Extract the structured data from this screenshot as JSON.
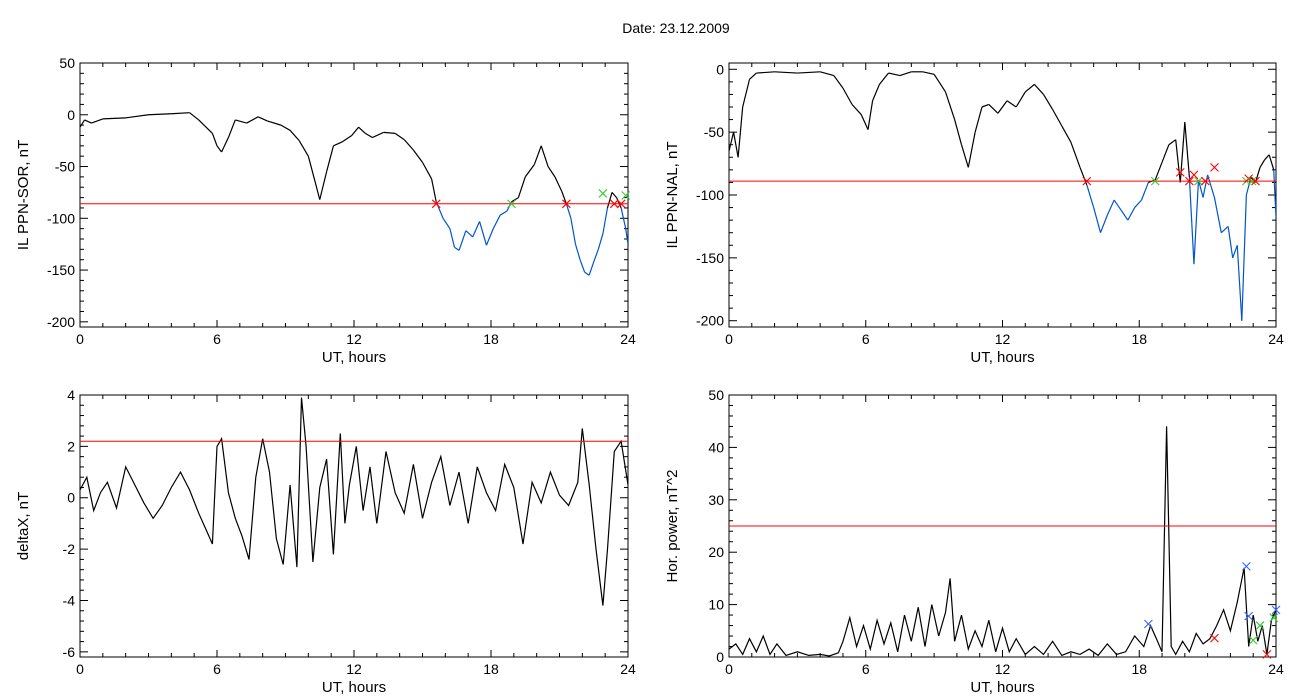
{
  "figure": {
    "title": "Date:  23.12.2009"
  },
  "colors": {
    "data_line": "#000000",
    "below_threshold": "#0055cc",
    "threshold": "#ff0000",
    "marker_red": "#ff0000",
    "marker_green": "#33cc33",
    "marker_blue": "#3366ff"
  },
  "chart_data": [
    {
      "type": "line",
      "xlabel": "UT, hours",
      "ylabel": "IL PPN-SOR, nT",
      "xlim": [
        0,
        24
      ],
      "ylim": [
        -205,
        50
      ],
      "xticks": [
        0,
        6,
        12,
        18,
        24
      ],
      "yticks": [
        50,
        0,
        -50,
        -100,
        -150,
        -200
      ],
      "threshold": -86,
      "color_below_threshold": true,
      "x": [
        0,
        0.2,
        0.5,
        1,
        2,
        3,
        4,
        4.8,
        5.2,
        5.8,
        6.0,
        6.2,
        6.5,
        6.8,
        7.3,
        7.8,
        8.2,
        8.8,
        9.2,
        9.6,
        10.0,
        10.3,
        10.5,
        10.8,
        11.1,
        11.5,
        11.9,
        12.2,
        12.5,
        12.8,
        13.3,
        13.8,
        14.2,
        14.6,
        15.0,
        15.4,
        15.6,
        15.9,
        16.2,
        16.4,
        16.6,
        16.9,
        17.2,
        17.5,
        17.8,
        18.1,
        18.4,
        18.7,
        18.9,
        19.2,
        19.5,
        19.9,
        20.2,
        20.5,
        20.8,
        21.1,
        21.3,
        21.5,
        21.7,
        21.9,
        22.1,
        22.3,
        22.5,
        22.7,
        22.9,
        23.1,
        23.3,
        23.5,
        23.7,
        23.9,
        24.0
      ],
      "y": [
        -12,
        -5,
        -8,
        -4,
        -3,
        0,
        1,
        2,
        -5,
        -18,
        -30,
        -36,
        -22,
        -5,
        -8,
        -2,
        -6,
        -10,
        -15,
        -25,
        -40,
        -65,
        -82,
        -55,
        -30,
        -26,
        -20,
        -12,
        -18,
        -22,
        -17,
        -18,
        -24,
        -34,
        -46,
        -62,
        -84,
        -100,
        -110,
        -128,
        -131,
        -112,
        -118,
        -103,
        -126,
        -110,
        -97,
        -93,
        -84,
        -80,
        -60,
        -48,
        -30,
        -50,
        -60,
        -74,
        -86,
        -100,
        -125,
        -140,
        -152,
        -155,
        -142,
        -130,
        -115,
        -90,
        -75,
        -80,
        -90,
        -110,
        -125
      ],
      "markers": [
        {
          "x": 15.6,
          "y": -86,
          "color": "red"
        },
        {
          "x": 18.9,
          "y": -86,
          "color": "green"
        },
        {
          "x": 21.3,
          "y": -86,
          "color": "red"
        },
        {
          "x": 22.9,
          "y": -76,
          "color": "green"
        },
        {
          "x": 23.4,
          "y": -86,
          "color": "red"
        },
        {
          "x": 23.7,
          "y": -86,
          "color": "red"
        },
        {
          "x": 23.9,
          "y": -78,
          "color": "green"
        }
      ]
    },
    {
      "type": "line",
      "xlabel": "UT, hours",
      "ylabel": "IL PPN-NAL, nT",
      "xlim": [
        0,
        24
      ],
      "ylim": [
        -205,
        5
      ],
      "xticks": [
        0,
        6,
        12,
        18,
        24
      ],
      "yticks": [
        0,
        -50,
        -100,
        -150,
        -200
      ],
      "threshold": -89,
      "color_below_threshold": true,
      "x": [
        0,
        0.2,
        0.4,
        0.6,
        0.9,
        1.2,
        2,
        3,
        4,
        4.6,
        5.0,
        5.4,
        5.8,
        6.1,
        6.3,
        6.6,
        7,
        7.5,
        8,
        8.5,
        9,
        9.5,
        9.9,
        10.2,
        10.5,
        10.8,
        11.1,
        11.4,
        11.8,
        12.2,
        12.6,
        13,
        13.4,
        13.8,
        14.2,
        14.6,
        15,
        15.4,
        15.7,
        16.0,
        16.3,
        16.6,
        16.9,
        17.2,
        17.5,
        17.8,
        18.1,
        18.4,
        18.7,
        19.0,
        19.3,
        19.6,
        19.8,
        20.0,
        20.2,
        20.4,
        20.6,
        20.8,
        21.0,
        21.3,
        21.6,
        21.9,
        22.1,
        22.3,
        22.5,
        22.7,
        22.9,
        23.1,
        23.3,
        23.5,
        23.7,
        23.9,
        24.0
      ],
      "y": [
        -65,
        -50,
        -70,
        -30,
        -8,
        -3,
        -2,
        -3,
        -2,
        -5,
        -15,
        -28,
        -36,
        -48,
        -25,
        -12,
        -3,
        -5,
        -2,
        -2,
        -4,
        -18,
        -40,
        -60,
        -78,
        -50,
        -30,
        -28,
        -35,
        -25,
        -30,
        -18,
        -12,
        -20,
        -32,
        -45,
        -58,
        -78,
        -92,
        -110,
        -130,
        -116,
        -104,
        -112,
        -120,
        -110,
        -104,
        -90,
        -88,
        -74,
        -60,
        -56,
        -90,
        -42,
        -86,
        -155,
        -88,
        -102,
        -84,
        -102,
        -130,
        -125,
        -150,
        -140,
        -200,
        -100,
        -86,
        -90,
        -78,
        -72,
        -68,
        -80,
        -118
      ],
      "markers": [
        {
          "x": 15.7,
          "y": -89,
          "color": "red"
        },
        {
          "x": 18.7,
          "y": -89,
          "color": "green"
        },
        {
          "x": 19.8,
          "y": -82,
          "color": "red"
        },
        {
          "x": 20.2,
          "y": -89,
          "color": "red"
        },
        {
          "x": 20.4,
          "y": -84,
          "color": "red"
        },
        {
          "x": 20.6,
          "y": -89,
          "color": "green"
        },
        {
          "x": 20.9,
          "y": -89,
          "color": "red"
        },
        {
          "x": 21.3,
          "y": -78,
          "color": "red"
        },
        {
          "x": 22.7,
          "y": -89,
          "color": "green"
        },
        {
          "x": 22.8,
          "y": -87,
          "color": "red"
        },
        {
          "x": 22.95,
          "y": -89,
          "color": "green"
        },
        {
          "x": 23.1,
          "y": -89,
          "color": "red"
        }
      ]
    },
    {
      "type": "line",
      "xlabel": "UT, hours",
      "ylabel": "deltaX, nT",
      "xlim": [
        0,
        24
      ],
      "ylim": [
        -6.2,
        4
      ],
      "xticks": [
        0,
        6,
        12,
        18,
        24
      ],
      "yticks": [
        4,
        2,
        0,
        -2,
        -4,
        -6
      ],
      "threshold": 2.2,
      "color_below_threshold": false,
      "x": [
        0,
        0.3,
        0.6,
        0.9,
        1.2,
        1.6,
        2.0,
        2.4,
        2.8,
        3.2,
        3.6,
        4.0,
        4.4,
        4.8,
        5.2,
        5.5,
        5.8,
        6.0,
        6.2,
        6.5,
        6.8,
        7.1,
        7.4,
        7.7,
        8.0,
        8.3,
        8.6,
        8.9,
        9.2,
        9.5,
        9.7,
        9.9,
        10.2,
        10.5,
        10.8,
        11.1,
        11.4,
        11.6,
        11.8,
        12.1,
        12.4,
        12.7,
        13.0,
        13.4,
        13.8,
        14.2,
        14.6,
        15.0,
        15.4,
        15.8,
        16.2,
        16.6,
        17.0,
        17.4,
        17.8,
        18.2,
        18.6,
        19.0,
        19.4,
        19.8,
        20.2,
        20.6,
        21.0,
        21.4,
        21.8,
        22.0,
        22.3,
        22.6,
        22.9,
        23.1,
        23.4,
        23.7,
        24.0
      ],
      "y": [
        0.3,
        0.8,
        -0.5,
        0.2,
        0.6,
        -0.4,
        1.2,
        0.5,
        -0.2,
        -0.8,
        -0.3,
        0.4,
        1.0,
        0.3,
        -0.6,
        -1.2,
        -1.8,
        2.0,
        2.3,
        0.2,
        -0.8,
        -1.5,
        -2.4,
        0.8,
        2.3,
        1.0,
        -1.6,
        -2.6,
        0.5,
        -2.7,
        3.9,
        2.0,
        -2.5,
        0.4,
        1.5,
        -2.2,
        2.5,
        -1.0,
        0.5,
        2.0,
        -0.5,
        1.2,
        -1.0,
        1.8,
        0.2,
        -0.6,
        1.3,
        -0.8,
        0.6,
        1.6,
        -0.3,
        1.0,
        -1.0,
        1.2,
        0.2,
        -0.5,
        1.3,
        0.4,
        -1.8,
        0.6,
        -0.2,
        1.0,
        0.1,
        -0.3,
        0.6,
        2.7,
        0.5,
        -2.0,
        -4.2,
        -2.0,
        1.8,
        2.2,
        0.5
      ],
      "markers": []
    },
    {
      "type": "line",
      "xlabel": "UT, hours",
      "ylabel": "Hor. power, nT^2",
      "xlim": [
        0,
        24
      ],
      "ylim": [
        0,
        50
      ],
      "xticks": [
        0,
        6,
        12,
        18,
        24
      ],
      "yticks": [
        0,
        10,
        20,
        30,
        40,
        50
      ],
      "threshold": 25,
      "color_below_threshold": false,
      "x": [
        0,
        0.3,
        0.6,
        0.9,
        1.2,
        1.5,
        1.8,
        2.1,
        2.5,
        3.0,
        3.5,
        4.0,
        4.4,
        4.8,
        5.0,
        5.3,
        5.6,
        5.9,
        6.2,
        6.5,
        6.8,
        7.1,
        7.4,
        7.7,
        8.0,
        8.3,
        8.6,
        8.9,
        9.2,
        9.5,
        9.7,
        9.9,
        10.2,
        10.5,
        10.8,
        11.1,
        11.4,
        11.7,
        12.0,
        12.3,
        12.6,
        13.0,
        13.4,
        13.8,
        14.2,
        14.6,
        15.0,
        15.4,
        15.8,
        16.2,
        16.6,
        17.0,
        17.4,
        17.8,
        18.2,
        18.5,
        18.8,
        19.0,
        19.2,
        19.4,
        19.6,
        19.9,
        20.2,
        20.5,
        20.8,
        21.1,
        21.4,
        21.7,
        22.0,
        22.3,
        22.6,
        22.8,
        23.0,
        23.2,
        23.4,
        23.6,
        23.8,
        24.0
      ],
      "y": [
        1.5,
        2.5,
        0.5,
        3.5,
        1.0,
        4.0,
        0.5,
        2.5,
        0.3,
        1.0,
        0.3,
        0.5,
        0.2,
        0.8,
        3.0,
        7.5,
        2.0,
        6.0,
        1.5,
        7.0,
        2.5,
        6.5,
        1.0,
        8.0,
        3.0,
        9.5,
        2.0,
        10.0,
        4.0,
        8.5,
        15.0,
        3.0,
        8.0,
        1.5,
        5.0,
        2.0,
        7.0,
        1.0,
        5.5,
        1.0,
        3.5,
        0.5,
        2.0,
        0.5,
        3.0,
        0.3,
        1.0,
        0.5,
        1.5,
        0.3,
        2.5,
        0.5,
        1.0,
        4.0,
        2.0,
        6.0,
        3.0,
        1.0,
        44.0,
        2.0,
        0.5,
        3.0,
        1.0,
        4.5,
        2.5,
        3.5,
        6.0,
        9.0,
        5.0,
        10.5,
        17.0,
        2.0,
        8.0,
        3.0,
        6.0,
        0.5,
        7.0,
        9.0
      ],
      "markers": [
        {
          "x": 18.4,
          "y": 6.3,
          "color": "blue"
        },
        {
          "x": 21.3,
          "y": 3.6,
          "color": "red"
        },
        {
          "x": 22.7,
          "y": 17.3,
          "color": "blue"
        },
        {
          "x": 22.8,
          "y": 7.8,
          "color": "blue"
        },
        {
          "x": 23.0,
          "y": 3.2,
          "color": "green"
        },
        {
          "x": 23.3,
          "y": 6.0,
          "color": "green"
        },
        {
          "x": 23.6,
          "y": 0.5,
          "color": "red"
        },
        {
          "x": 23.9,
          "y": 7.5,
          "color": "green"
        },
        {
          "x": 24.0,
          "y": 9.0,
          "color": "blue"
        }
      ]
    }
  ]
}
